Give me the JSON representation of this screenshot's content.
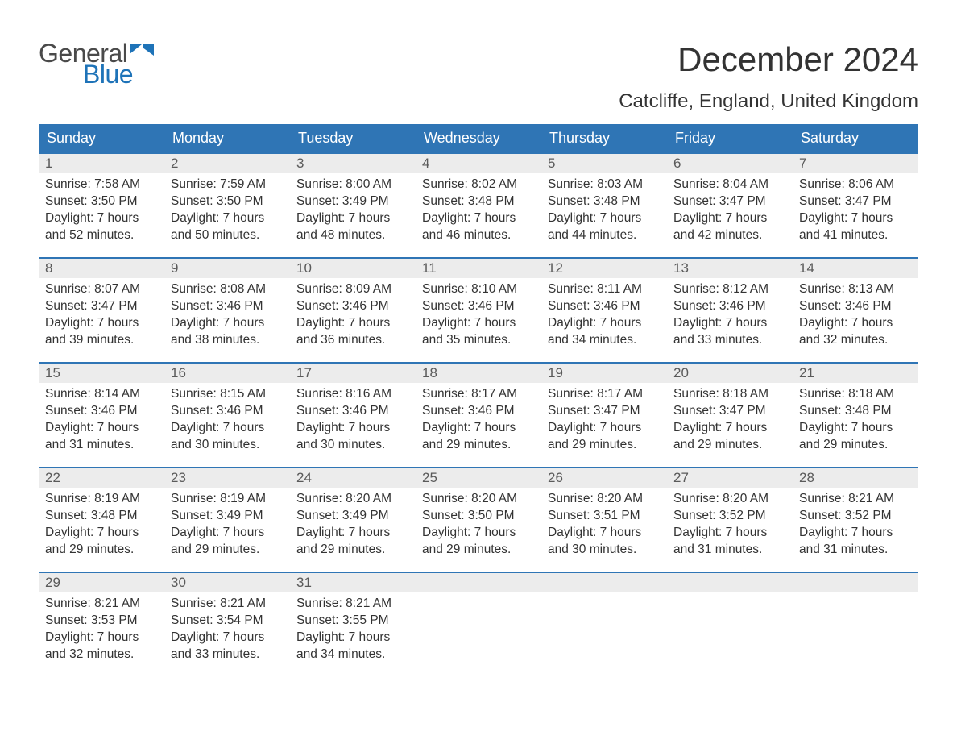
{
  "logo": {
    "text_general": "General",
    "text_blue": "Blue",
    "flag_color": "#1e73b8"
  },
  "header": {
    "month_title": "December 2024",
    "location": "Catcliffe, England, United Kingdom"
  },
  "colors": {
    "header_bg": "#2f75b5",
    "header_text": "#ffffff",
    "daynum_bg": "#ececec",
    "week_border": "#2f75b5",
    "body_text": "#333333",
    "logo_gray": "#4a4a4a",
    "logo_blue": "#1e73b8",
    "page_bg": "#ffffff"
  },
  "typography": {
    "month_title_fontsize": 42,
    "location_fontsize": 24,
    "weekday_fontsize": 18,
    "daynum_fontsize": 17,
    "body_fontsize": 15.5,
    "font_family": "Arial"
  },
  "weekdays": [
    "Sunday",
    "Monday",
    "Tuesday",
    "Wednesday",
    "Thursday",
    "Friday",
    "Saturday"
  ],
  "labels": {
    "sunrise": "Sunrise:",
    "sunset": "Sunset:",
    "daylight": "Daylight:",
    "hours_word": "hours",
    "and_word": "and",
    "minutes_word": "minutes."
  },
  "weeks": [
    [
      {
        "n": "1",
        "sr": "7:58 AM",
        "ss": "3:50 PM",
        "dh": "7",
        "dm": "52"
      },
      {
        "n": "2",
        "sr": "7:59 AM",
        "ss": "3:50 PM",
        "dh": "7",
        "dm": "50"
      },
      {
        "n": "3",
        "sr": "8:00 AM",
        "ss": "3:49 PM",
        "dh": "7",
        "dm": "48"
      },
      {
        "n": "4",
        "sr": "8:02 AM",
        "ss": "3:48 PM",
        "dh": "7",
        "dm": "46"
      },
      {
        "n": "5",
        "sr": "8:03 AM",
        "ss": "3:48 PM",
        "dh": "7",
        "dm": "44"
      },
      {
        "n": "6",
        "sr": "8:04 AM",
        "ss": "3:47 PM",
        "dh": "7",
        "dm": "42"
      },
      {
        "n": "7",
        "sr": "8:06 AM",
        "ss": "3:47 PM",
        "dh": "7",
        "dm": "41"
      }
    ],
    [
      {
        "n": "8",
        "sr": "8:07 AM",
        "ss": "3:47 PM",
        "dh": "7",
        "dm": "39"
      },
      {
        "n": "9",
        "sr": "8:08 AM",
        "ss": "3:46 PM",
        "dh": "7",
        "dm": "38"
      },
      {
        "n": "10",
        "sr": "8:09 AM",
        "ss": "3:46 PM",
        "dh": "7",
        "dm": "36"
      },
      {
        "n": "11",
        "sr": "8:10 AM",
        "ss": "3:46 PM",
        "dh": "7",
        "dm": "35"
      },
      {
        "n": "12",
        "sr": "8:11 AM",
        "ss": "3:46 PM",
        "dh": "7",
        "dm": "34"
      },
      {
        "n": "13",
        "sr": "8:12 AM",
        "ss": "3:46 PM",
        "dh": "7",
        "dm": "33"
      },
      {
        "n": "14",
        "sr": "8:13 AM",
        "ss": "3:46 PM",
        "dh": "7",
        "dm": "32"
      }
    ],
    [
      {
        "n": "15",
        "sr": "8:14 AM",
        "ss": "3:46 PM",
        "dh": "7",
        "dm": "31"
      },
      {
        "n": "16",
        "sr": "8:15 AM",
        "ss": "3:46 PM",
        "dh": "7",
        "dm": "30"
      },
      {
        "n": "17",
        "sr": "8:16 AM",
        "ss": "3:46 PM",
        "dh": "7",
        "dm": "30"
      },
      {
        "n": "18",
        "sr": "8:17 AM",
        "ss": "3:46 PM",
        "dh": "7",
        "dm": "29"
      },
      {
        "n": "19",
        "sr": "8:17 AM",
        "ss": "3:47 PM",
        "dh": "7",
        "dm": "29"
      },
      {
        "n": "20",
        "sr": "8:18 AM",
        "ss": "3:47 PM",
        "dh": "7",
        "dm": "29"
      },
      {
        "n": "21",
        "sr": "8:18 AM",
        "ss": "3:48 PM",
        "dh": "7",
        "dm": "29"
      }
    ],
    [
      {
        "n": "22",
        "sr": "8:19 AM",
        "ss": "3:48 PM",
        "dh": "7",
        "dm": "29"
      },
      {
        "n": "23",
        "sr": "8:19 AM",
        "ss": "3:49 PM",
        "dh": "7",
        "dm": "29"
      },
      {
        "n": "24",
        "sr": "8:20 AM",
        "ss": "3:49 PM",
        "dh": "7",
        "dm": "29"
      },
      {
        "n": "25",
        "sr": "8:20 AM",
        "ss": "3:50 PM",
        "dh": "7",
        "dm": "29"
      },
      {
        "n": "26",
        "sr": "8:20 AM",
        "ss": "3:51 PM",
        "dh": "7",
        "dm": "30"
      },
      {
        "n": "27",
        "sr": "8:20 AM",
        "ss": "3:52 PM",
        "dh": "7",
        "dm": "31"
      },
      {
        "n": "28",
        "sr": "8:21 AM",
        "ss": "3:52 PM",
        "dh": "7",
        "dm": "31"
      }
    ],
    [
      {
        "n": "29",
        "sr": "8:21 AM",
        "ss": "3:53 PM",
        "dh": "7",
        "dm": "32"
      },
      {
        "n": "30",
        "sr": "8:21 AM",
        "ss": "3:54 PM",
        "dh": "7",
        "dm": "33"
      },
      {
        "n": "31",
        "sr": "8:21 AM",
        "ss": "3:55 PM",
        "dh": "7",
        "dm": "34"
      },
      null,
      null,
      null,
      null
    ]
  ]
}
